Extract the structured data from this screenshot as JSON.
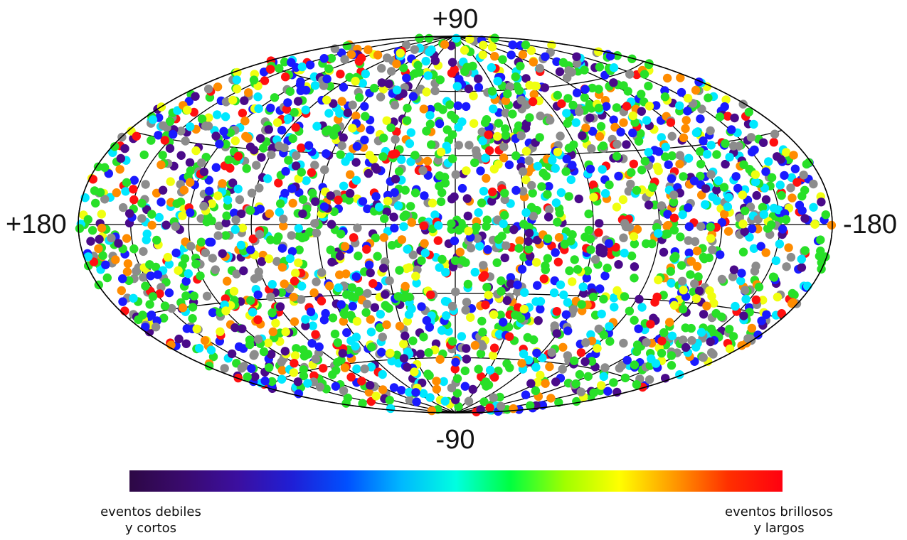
{
  "chart_data": {
    "type": "scatter",
    "projection": "aitoff-hammer",
    "title": "",
    "axis_labels": {
      "north_pole": "+90",
      "south_pole": "-90",
      "left_edge": "+180",
      "right_edge": "-180"
    },
    "lon_range": [
      180,
      -180
    ],
    "lat_range": [
      -90,
      90
    ],
    "graticule": {
      "meridian_step_deg": 30,
      "parallel_step_deg": 30,
      "color": "#000000"
    },
    "point_count": 2700,
    "point_distribution": "roughly isotropic over the whole sky",
    "point_colors": {
      "gray": "#8c8c8c",
      "dark_purple": "#4a0a8a",
      "blue": "#1a1aff",
      "cyan": "#00e8ff",
      "green": "#28e028",
      "yellow": "#f0ff10",
      "orange": "#ff8c00",
      "red": "#ff1010"
    },
    "colorbar": {
      "low_label": "eventos debiles\ny cortos",
      "high_label": "eventos brillosos\ny largos",
      "stops": [
        "#2d0845",
        "#3a0a6e",
        "#3b0fa0",
        "#1f1fd6",
        "#0050ff",
        "#00b8ff",
        "#00ffe0",
        "#00ff40",
        "#a0ff00",
        "#ffff00",
        "#ff9a00",
        "#ff3000",
        "#ff0010"
      ]
    }
  }
}
